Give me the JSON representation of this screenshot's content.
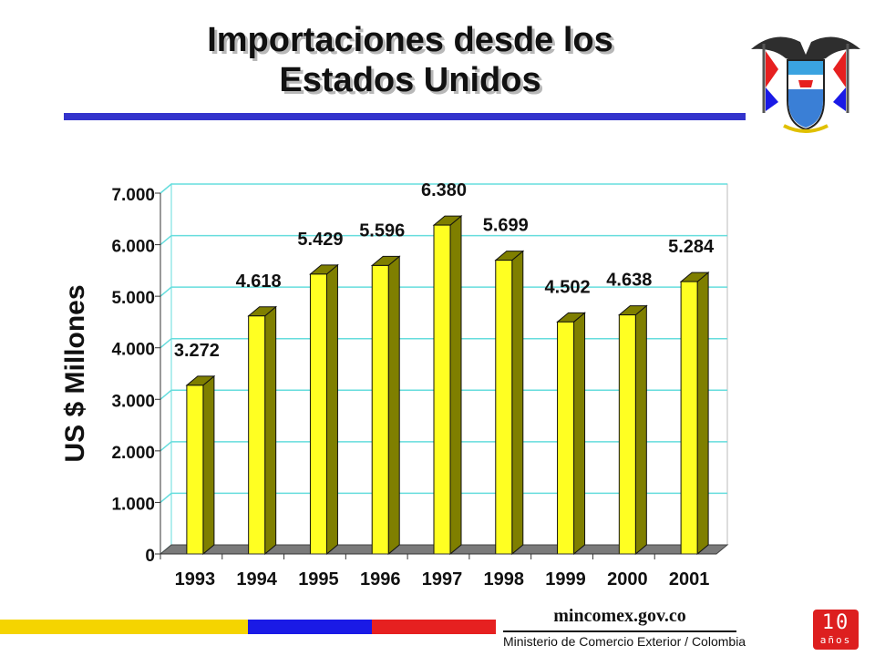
{
  "slide": {
    "title_line1": "Importaciones desde los",
    "title_line2": "Estados Unidos",
    "accent_color": "#3333cc",
    "crest_icon": "colombia-coat-of-arms-icon"
  },
  "chart_data": {
    "type": "bar",
    "style": "3d",
    "categories": [
      "1993",
      "1994",
      "1995",
      "1996",
      "1997",
      "1998",
      "1999",
      "2000",
      "2001"
    ],
    "values": [
      3272,
      4618,
      5429,
      5596,
      6380,
      5699,
      4502,
      4638,
      5284
    ],
    "value_labels": [
      "3.272",
      "4.618",
      "5.429",
      "5.596",
      "6.380",
      "5.699",
      "4.502",
      "4.638",
      "5.284"
    ],
    "ylabel": "US $ Millones",
    "xlabel": "",
    "ylim": [
      0,
      7000
    ],
    "yticks": [
      0,
      1000,
      2000,
      3000,
      4000,
      5000,
      6000,
      7000
    ],
    "ytick_labels": [
      "0",
      "1.000",
      "2.000",
      "3.000",
      "4.000",
      "5.000",
      "6.000",
      "7.000"
    ],
    "grid": true,
    "legend": "none",
    "bar_color": "#ffff22",
    "bar_side_color": "#7f7f00",
    "gridline_color": "#66dddd"
  },
  "footer": {
    "site": "mincomex.gov.co",
    "ministry": "Ministerio de Comercio Exterior / Colombia",
    "badge_number": "10",
    "badge_word": "años",
    "flag_colors": [
      "#f5d400",
      "#1a1ae6",
      "#e62020"
    ]
  }
}
